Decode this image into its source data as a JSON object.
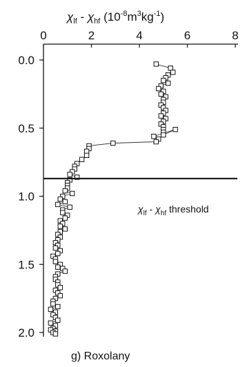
{
  "chart_data": {
    "type": "scatter",
    "title": "",
    "caption": "g) Roxolany",
    "xlabel": "χlf - χhf (10-8m3kg-1)",
    "ylabel": "",
    "xlim": [
      0,
      8
    ],
    "ylim": [
      0.0,
      2.0
    ],
    "x_ticks": [
      "0",
      "2",
      "4",
      "6",
      "8"
    ],
    "y_ticks": [
      "0.0",
      "0.5",
      "1.0",
      "1.5",
      "2.0"
    ],
    "x_axis_position": "top",
    "y_axis_inverted": true,
    "grid": false,
    "legend": "none",
    "marker": "open-square",
    "connected": true,
    "threshold": {
      "y": 0.87,
      "label": "χlf - χhf threshold"
    },
    "series": [
      {
        "x": [
          4.7,
          5.3,
          5.4,
          5.2,
          5.1,
          5.0,
          5.2,
          4.9,
          4.8,
          5.0,
          4.9,
          5.1,
          5.0,
          5.0,
          4.9,
          5.0,
          5.1,
          5.0,
          4.9,
          5.1,
          5.0,
          4.9,
          5.0,
          5.0,
          5.0,
          5.0,
          5.5,
          4.6,
          4.8,
          4.7,
          2.9,
          1.9,
          1.9,
          1.8,
          1.8,
          1.6,
          1.4,
          1.3,
          1.3,
          1.2,
          1.1,
          1.4,
          1.1,
          1.0,
          1.0,
          1.0,
          0.9,
          1.2,
          0.8,
          0.7,
          0.9,
          0.6,
          1.1,
          0.8,
          0.8,
          1.0,
          0.9,
          0.7,
          0.8,
          0.7,
          0.9,
          0.7,
          0.6,
          0.7,
          0.6,
          0.5,
          0.6,
          0.5,
          0.7,
          0.6,
          0.4,
          0.5,
          0.5,
          0.7,
          0.6,
          0.8,
          0.9,
          0.6,
          0.5,
          0.5,
          0.6,
          0.6,
          0.7,
          0.5,
          0.6,
          0.7,
          0.5,
          0.4,
          0.4,
          0.6,
          0.3,
          0.5,
          0.4,
          0.5,
          0.6,
          0.3,
          0.5,
          0.4,
          0.3,
          0.5,
          0.4,
          0.5
        ],
        "y": [
          0.03,
          0.06,
          0.09,
          0.11,
          0.13,
          0.15,
          0.17,
          0.19,
          0.21,
          0.23,
          0.25,
          0.27,
          0.29,
          0.31,
          0.33,
          0.35,
          0.37,
          0.39,
          0.41,
          0.43,
          0.45,
          0.47,
          0.49,
          0.51,
          0.53,
          0.55,
          0.51,
          0.56,
          0.58,
          0.6,
          0.61,
          0.63,
          0.65,
          0.67,
          0.7,
          0.73,
          0.76,
          0.78,
          0.8,
          0.82,
          0.84,
          0.86,
          0.88,
          0.9,
          0.92,
          0.94,
          0.96,
          0.98,
          1.0,
          1.02,
          1.04,
          1.06,
          1.08,
          1.1,
          1.12,
          1.14,
          1.16,
          1.18,
          1.2,
          1.22,
          1.24,
          1.26,
          1.28,
          1.3,
          1.32,
          1.34,
          1.36,
          1.38,
          1.4,
          1.42,
          1.44,
          1.46,
          1.48,
          1.5,
          1.52,
          1.53,
          1.55,
          1.57,
          1.59,
          1.61,
          1.63,
          1.65,
          1.67,
          1.69,
          1.71,
          1.73,
          1.75,
          1.77,
          1.79,
          1.81,
          1.83,
          1.85,
          1.87,
          1.89,
          1.91,
          1.93,
          1.95,
          1.97,
          1.98,
          1.99,
          2.0,
          2.01
        ]
      }
    ]
  }
}
